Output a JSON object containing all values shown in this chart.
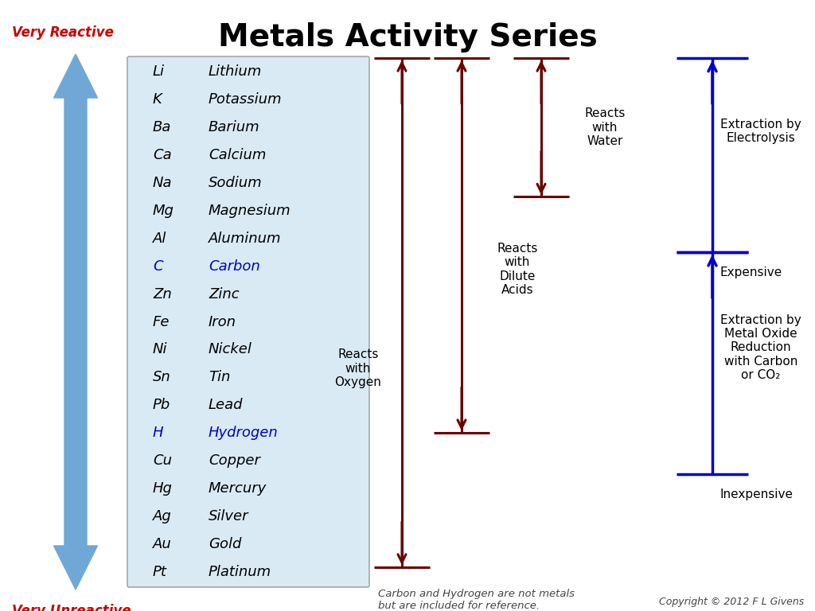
{
  "title": "Metals Activity Series",
  "title_fontsize": 26,
  "title_fontweight": "bold",
  "bg_color": "#ffffff",
  "elements": [
    [
      "Li",
      "Lithium"
    ],
    [
      "K",
      "Potassium"
    ],
    [
      "Ba",
      "Barium"
    ],
    [
      "Ca",
      "Calcium"
    ],
    [
      "Na",
      "Sodium"
    ],
    [
      "Mg",
      "Magnesium"
    ],
    [
      "Al",
      "Aluminum"
    ],
    [
      "C",
      "Carbon"
    ],
    [
      "Zn",
      "Zinc"
    ],
    [
      "Fe",
      "Iron"
    ],
    [
      "Ni",
      "Nickel"
    ],
    [
      "Sn",
      "Tin"
    ],
    [
      "Pb",
      "Lead"
    ],
    [
      "H",
      "Hydrogen"
    ],
    [
      "Cu",
      "Copper"
    ],
    [
      "Hg",
      "Mercury"
    ],
    [
      "Ag",
      "Silver"
    ],
    [
      "Au",
      "Gold"
    ],
    [
      "Pt",
      "Platinum"
    ]
  ],
  "special_blue": [
    "C",
    "H"
  ],
  "table_box_color": "#daeaf5",
  "table_box_edge": "#999999",
  "dark_red": "#6B0000",
  "blue": "#0000CC",
  "light_blue_arrow": "#6699cc",
  "very_reactive_color": "#cc0000",
  "very_reactive_label": "Very Reactive",
  "very_unreactive_label": "Very Unreactive",
  "footnote": "Carbon and Hydrogen are not metals\nbut are included for reference.",
  "copyright": "Copyright © 2012 F L Givens",
  "bracket_labels": [
    "Reacts\nwith\nOxygen",
    "Reacts\nwith\nDilute\nAcids",
    "Reacts\nwith\nWater"
  ],
  "right_labels": [
    "Extraction by\nElectrolysis",
    "Expensive",
    "Extraction by\nMetal Oxide\nReduction\nwith Carbon\nor CO₂",
    "Inexpensive"
  ]
}
